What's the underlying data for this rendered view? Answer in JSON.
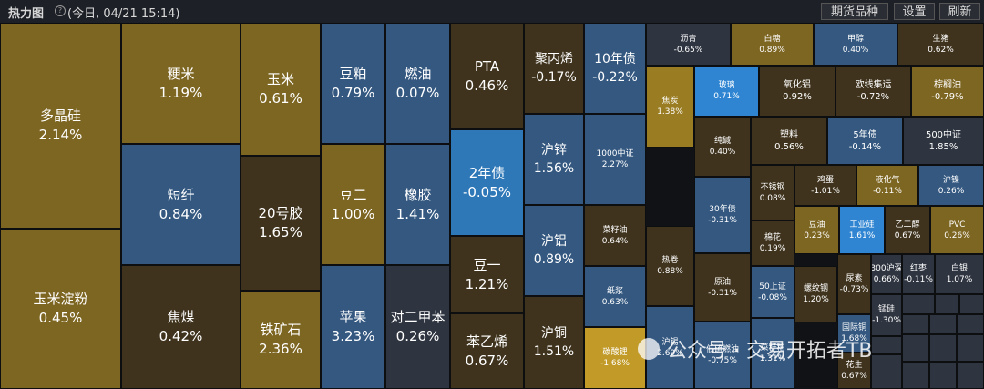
{
  "header": {
    "title": "热力图",
    "help_icon": "?",
    "date": "(今日, 04/21 15:14)",
    "buttons": [
      "期货品种",
      "设置",
      "刷新"
    ]
  },
  "colors": {
    "gold": "#7d6522",
    "bright_gold": "#9a7d22",
    "yellow": "#c19a28",
    "dark_brown": "#3f331d",
    "dark_gray": "#2f3540",
    "blue_gray": "#345880",
    "blue": "#2f78b8",
    "bright_blue": "#2f85d2"
  },
  "tiles": [
    {
      "name": "多晶硅",
      "pct": "2.14%",
      "c": "gold"
    },
    {
      "name": "玉米淀粉",
      "pct": "0.45%",
      "c": "gold"
    },
    {
      "name": "粳米",
      "pct": "1.19%",
      "c": "gold"
    },
    {
      "name": "短纤",
      "pct": "0.84%",
      "c": "blue_gray"
    },
    {
      "name": "焦煤",
      "pct": "0.42%",
      "c": "dark_brown"
    },
    {
      "name": "玉米",
      "pct": "0.61%",
      "c": "gold"
    },
    {
      "name": "20号胶",
      "pct": "1.65%",
      "c": "dark_brown"
    },
    {
      "name": "铁矿石",
      "pct": "2.36%",
      "c": "gold"
    },
    {
      "name": "豆粕",
      "pct": "0.79%",
      "c": "blue_gray"
    },
    {
      "name": "豆二",
      "pct": "1.00%",
      "c": "gold"
    },
    {
      "name": "苹果",
      "pct": "3.23%",
      "c": "blue_gray"
    },
    {
      "name": "燃油",
      "pct": "0.07%",
      "c": "blue_gray"
    },
    {
      "name": "橡胶",
      "pct": "1.41%",
      "c": "blue_gray"
    },
    {
      "name": "对二甲苯",
      "pct": "0.26%",
      "c": "dark_gray"
    },
    {
      "name": "PTA",
      "pct": "0.46%",
      "c": "dark_brown"
    },
    {
      "name": "2年债",
      "pct": "-0.05%",
      "c": "blue"
    },
    {
      "name": "豆一",
      "pct": "1.21%",
      "c": "dark_brown"
    },
    {
      "name": "苯乙烯",
      "pct": "0.67%",
      "c": "dark_brown"
    },
    {
      "name": "聚丙烯",
      "pct": "-0.17%",
      "c": "dark_brown"
    },
    {
      "name": "沪锌",
      "pct": "1.56%",
      "c": "blue_gray"
    },
    {
      "name": "沪铝",
      "pct": "0.89%",
      "c": "blue_gray"
    },
    {
      "name": "沪铜",
      "pct": "1.51%",
      "c": "dark_brown"
    },
    {
      "name": "10年债",
      "pct": "-0.22%",
      "c": "blue_gray"
    },
    {
      "name": "1000中证",
      "pct": "2.27%",
      "c": "blue_gray"
    },
    {
      "name": "菜籽油",
      "pct": "0.64%",
      "c": "dark_brown"
    },
    {
      "name": "纸浆",
      "pct": "0.63%",
      "c": "blue_gray"
    },
    {
      "name": "碳酸锂",
      "pct": "-1.68%",
      "c": "yellow"
    },
    {
      "name": "焦炭",
      "pct": "1.38%",
      "c": "bright_gold"
    },
    {
      "name": "热卷",
      "pct": "0.88%",
      "c": "dark_brown"
    },
    {
      "name": "沪锡",
      "pct": "2.69%",
      "c": "blue_gray"
    },
    {
      "name": "沥青",
      "pct": "-0.65%",
      "c": "dark_gray"
    },
    {
      "name": "白糖",
      "pct": "0.89%",
      "c": "gold"
    },
    {
      "name": "甲醇",
      "pct": "0.40%",
      "c": "blue_gray"
    },
    {
      "name": "生猪",
      "pct": "0.62%",
      "c": "dark_brown"
    },
    {
      "name": "玻璃",
      "pct": "0.71%",
      "c": "bright_blue"
    },
    {
      "name": "氧化铝",
      "pct": "0.92%",
      "c": "dark_brown"
    },
    {
      "name": "欧线集运",
      "pct": "-0.72%",
      "c": "dark_brown"
    },
    {
      "name": "棕榈油",
      "pct": "-0.79%",
      "c": "gold"
    },
    {
      "name": "纯碱",
      "pct": "0.40%",
      "c": "dark_brown"
    },
    {
      "name": "塑料",
      "pct": "0.56%",
      "c": "dark_brown"
    },
    {
      "name": "5年债",
      "pct": "-0.14%",
      "c": "blue_gray"
    },
    {
      "name": "500中证",
      "pct": "1.85%",
      "c": "dark_gray"
    },
    {
      "name": "30年债",
      "pct": "-0.31%",
      "c": "blue_gray"
    },
    {
      "name": "原油",
      "pct": "-0.31%",
      "c": "dark_brown"
    },
    {
      "name": "低硫燃油",
      "pct": "-0.75%",
      "c": "blue_gray"
    },
    {
      "name": "不锈钢",
      "pct": "0.08%",
      "c": "dark_brown"
    },
    {
      "name": "鸡蛋",
      "pct": "-1.01%",
      "c": "dark_brown"
    },
    {
      "name": "液化气",
      "pct": "-0.11%",
      "c": "gold"
    },
    {
      "name": "沪镍",
      "pct": "0.26%",
      "c": "blue_gray"
    },
    {
      "name": "棉花",
      "pct": "0.19%",
      "c": "dark_brown"
    },
    {
      "name": "豆油",
      "pct": "0.23%",
      "c": "gold"
    },
    {
      "name": "工业硅",
      "pct": "1.61%",
      "c": "bright_blue"
    },
    {
      "name": "乙二醇",
      "pct": "0.67%",
      "c": "dark_brown"
    },
    {
      "name": "PVC",
      "pct": "0.26%",
      "c": "gold"
    },
    {
      "name": "50上证",
      "pct": "-0.08%",
      "c": "blue_gray"
    },
    {
      "name": "螺纹钢",
      "pct": "1.20%",
      "c": "dark_brown"
    },
    {
      "name": "尿素",
      "pct": "-0.73%",
      "c": "dark_brown"
    },
    {
      "name": "300沪深",
      "pct": "0.66%",
      "c": "dark_gray"
    },
    {
      "name": "红枣",
      "pct": "-0.11%",
      "c": "dark_gray"
    },
    {
      "name": "白银",
      "pct": "1.07%",
      "c": "dark_gray"
    },
    {
      "name": "锰硅",
      "pct": "-1.30%",
      "c": "dark_gray"
    },
    {
      "name": "国际铜",
      "pct": "1.68%",
      "c": "blue_gray"
    },
    {
      "name": "菜籽粕",
      "pct": "1.31%",
      "c": "blue_gray"
    },
    {
      "name": "花生",
      "pct": "0.67%",
      "c": "dark_brown"
    },
    {
      "name": "纤维",
      "pct": "1.21%",
      "c": "blue_gray"
    }
  ],
  "watermark": "公众号 · 交易开拓者TB"
}
